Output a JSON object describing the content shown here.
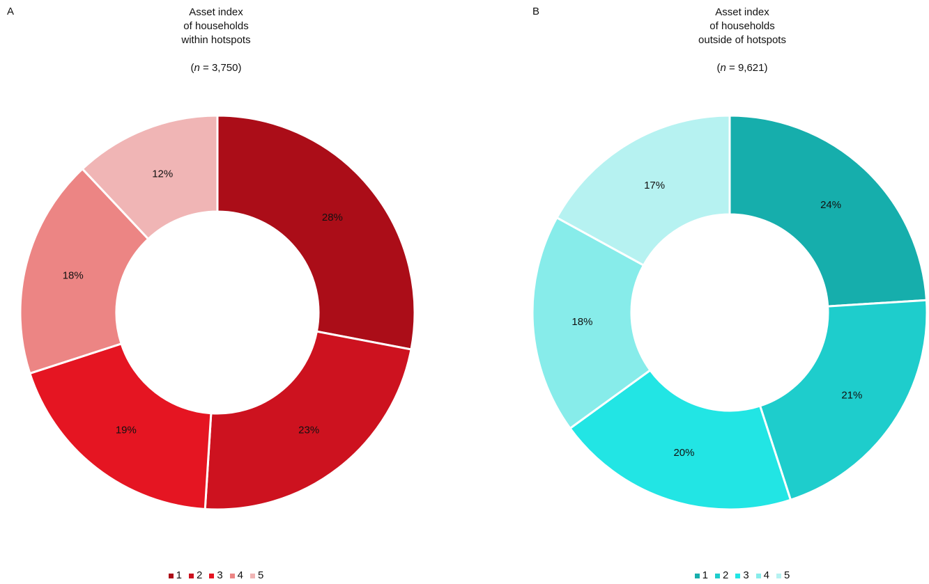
{
  "chart_data": [
    {
      "type": "pie",
      "panel_label": "A",
      "title_lines": [
        "Asset index",
        "of households",
        "within hotspots"
      ],
      "n_label": "n",
      "n_value": "= 3,750)",
      "categories": [
        "1",
        "2",
        "3",
        "4",
        "5"
      ],
      "values": [
        28,
        23,
        19,
        18,
        12
      ],
      "value_labels": [
        "28%",
        "23%",
        "19%",
        "18%",
        "12%"
      ],
      "colors": [
        "#ab0d18",
        "#cd121f",
        "#e51522",
        "#ec8584",
        "#f0b5b5"
      ],
      "donut": true,
      "legend_position": "bottom"
    },
    {
      "type": "pie",
      "panel_label": "B",
      "title_lines": [
        "Asset index",
        "of households",
        "outside of hotspots"
      ],
      "n_label": "n",
      "n_value": "= 9,621)",
      "categories": [
        "1",
        "2",
        "3",
        "4",
        "5"
      ],
      "values": [
        24,
        21,
        20,
        18,
        17
      ],
      "value_labels": [
        "24%",
        "21%",
        "20%",
        "18%",
        "17%"
      ],
      "colors": [
        "#16aeac",
        "#1ecdcc",
        "#22e5e4",
        "#87ecea",
        "#b6f2f1"
      ],
      "donut": true,
      "legend_position": "bottom"
    }
  ]
}
